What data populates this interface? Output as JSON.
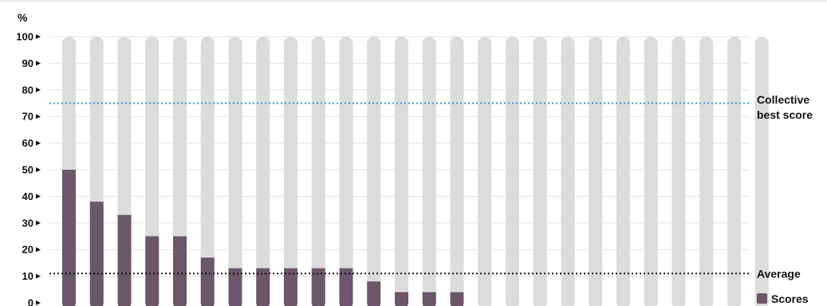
{
  "chart_data": {
    "type": "bar",
    "title": "",
    "xlabel": "",
    "ylabel": "%",
    "ylim": [
      0,
      100
    ],
    "yticks": [
      "0",
      "10",
      "20",
      "30",
      "40",
      "50",
      "60",
      "70",
      "80",
      "90",
      "100"
    ],
    "grid": true,
    "categories": [
      "",
      "",
      "",
      "",
      "",
      "",
      "",
      "",
      "",
      "",
      "",
      "",
      "",
      "",
      "",
      "",
      "",
      "",
      "",
      "",
      "",
      "",
      "",
      "",
      "",
      ""
    ],
    "series": [
      {
        "name": "Scores",
        "color": "#6b5769",
        "values": [
          50,
          38,
          33,
          25,
          25,
          17,
          13,
          13,
          13,
          13,
          13,
          8,
          4,
          4,
          4,
          0,
          0,
          0,
          0,
          0,
          0,
          0,
          0,
          0,
          0,
          0
        ]
      }
    ],
    "background_bar_value": 100,
    "background_bar_color": "#dcdcdc",
    "reference_lines": [
      {
        "label_lines": [
          "Collective",
          "best score"
        ],
        "value": 75,
        "color": "#1fa3d4",
        "style": "dotted"
      },
      {
        "label_lines": [
          "Average"
        ],
        "value": 11,
        "color": "#111111",
        "style": "dotted"
      }
    ],
    "legend": {
      "position": "bottom-right"
    }
  }
}
